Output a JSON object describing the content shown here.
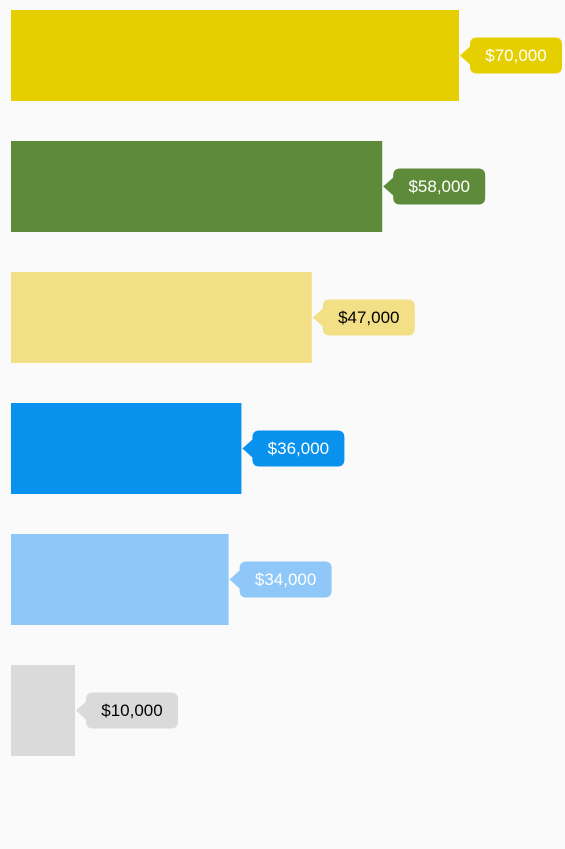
{
  "chart_data": {
    "type": "bar",
    "orientation": "horizontal",
    "values": [
      70000,
      58000,
      47000,
      36000,
      34000,
      10000
    ],
    "value_labels": [
      "$70,000",
      "$58,000",
      "$47,000",
      "$36,000",
      "$34,000",
      "$10,000"
    ],
    "colors": [
      "#e6cf00",
      "#5e8b3a",
      "#f3df86",
      "#0892ee",
      "#8ec7f8",
      "#dadada"
    ],
    "label_colors": [
      "#ffffff",
      "#ffffff",
      "#000000",
      "#ffffff",
      "#ffffff",
      "#000000"
    ],
    "xlim": [
      0,
      85000
    ]
  }
}
